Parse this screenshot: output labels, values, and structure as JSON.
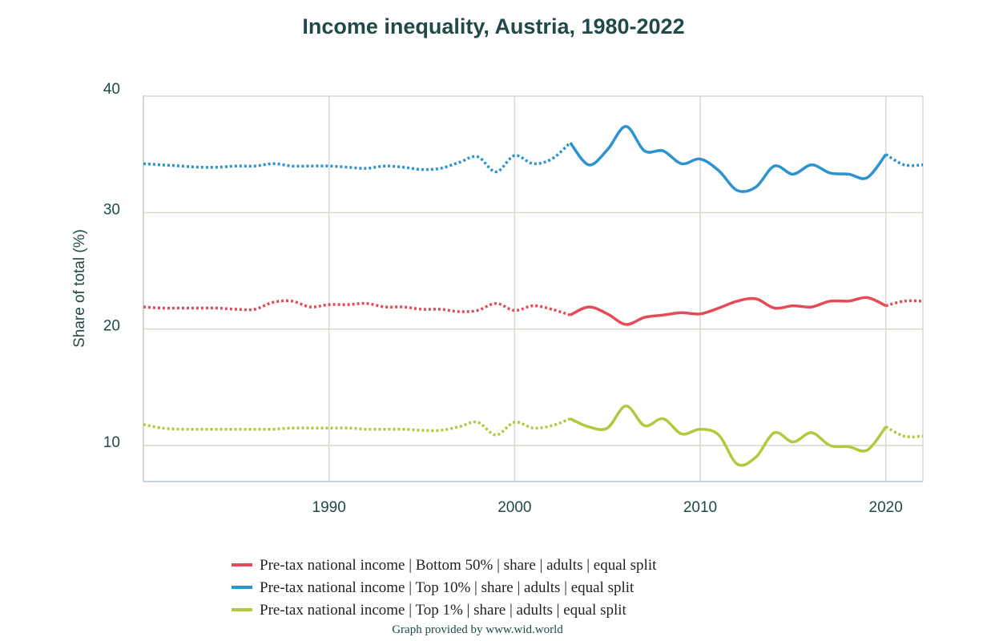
{
  "chart_data": {
    "type": "line",
    "title": "Income inequality, Austria, 1980-2022",
    "ylabel": "Share of total (%)",
    "xlim": [
      1980,
      2022
    ],
    "ylim": [
      7,
      40
    ],
    "yticks": [
      10,
      20,
      30,
      40
    ],
    "xticks": [
      1990,
      2000,
      2010,
      2020
    ],
    "grid": true,
    "legend_position": "bottom",
    "x": [
      1980,
      1981,
      1982,
      1983,
      1984,
      1985,
      1986,
      1987,
      1988,
      1989,
      1990,
      1991,
      1992,
      1993,
      1994,
      1995,
      1996,
      1997,
      1998,
      1999,
      2000,
      2001,
      2002,
      2003,
      2004,
      2005,
      2006,
      2007,
      2008,
      2009,
      2010,
      2011,
      2012,
      2013,
      2014,
      2015,
      2016,
      2017,
      2018,
      2019,
      2020,
      2021,
      2022
    ],
    "solid_range": [
      2003,
      2020
    ],
    "series": [
      {
        "name": "Pre-tax national income | Bottom 50% | share | adults | equal split",
        "color": "#e54b57",
        "values": [
          21.9,
          21.8,
          21.8,
          21.8,
          21.8,
          21.7,
          21.7,
          22.3,
          22.4,
          21.9,
          22.1,
          22.1,
          22.2,
          21.9,
          21.9,
          21.7,
          21.7,
          21.5,
          21.6,
          22.2,
          21.6,
          22.0,
          21.7,
          21.2,
          21.9,
          21.3,
          20.4,
          21.0,
          21.2,
          21.4,
          21.3,
          21.8,
          22.4,
          22.6,
          21.8,
          22.0,
          21.9,
          22.4,
          22.4,
          22.7,
          22.0,
          22.4,
          22.4
        ]
      },
      {
        "name": "Pre-tax national income | Top 10% | share | adults | equal split",
        "color": "#2b93d1",
        "values": [
          34.2,
          34.1,
          34.0,
          33.9,
          33.9,
          34.0,
          34.0,
          34.2,
          34.0,
          34.0,
          34.0,
          33.9,
          33.8,
          34.0,
          33.9,
          33.7,
          33.8,
          34.3,
          34.8,
          33.5,
          34.9,
          34.2,
          34.6,
          36.0,
          34.1,
          35.4,
          37.4,
          35.3,
          35.3,
          34.2,
          34.6,
          33.6,
          31.9,
          32.2,
          34.0,
          33.3,
          34.1,
          33.4,
          33.3,
          33.0,
          35.0,
          34.1,
          34.1
        ]
      },
      {
        "name": "Pre-tax national income | Top 1% | share | adults | equal split",
        "color": "#b3c83c",
        "values": [
          11.8,
          11.5,
          11.4,
          11.4,
          11.4,
          11.4,
          11.4,
          11.4,
          11.5,
          11.5,
          11.5,
          11.5,
          11.4,
          11.4,
          11.4,
          11.3,
          11.3,
          11.6,
          12.0,
          10.9,
          12.0,
          11.5,
          11.7,
          12.3,
          11.6,
          11.5,
          13.4,
          11.7,
          12.3,
          11.0,
          11.4,
          10.9,
          8.4,
          9.0,
          11.1,
          10.3,
          11.1,
          10.0,
          9.9,
          9.6,
          11.6,
          10.8,
          10.8
        ]
      }
    ],
    "credit": "Graph provided by www.wid.world"
  }
}
